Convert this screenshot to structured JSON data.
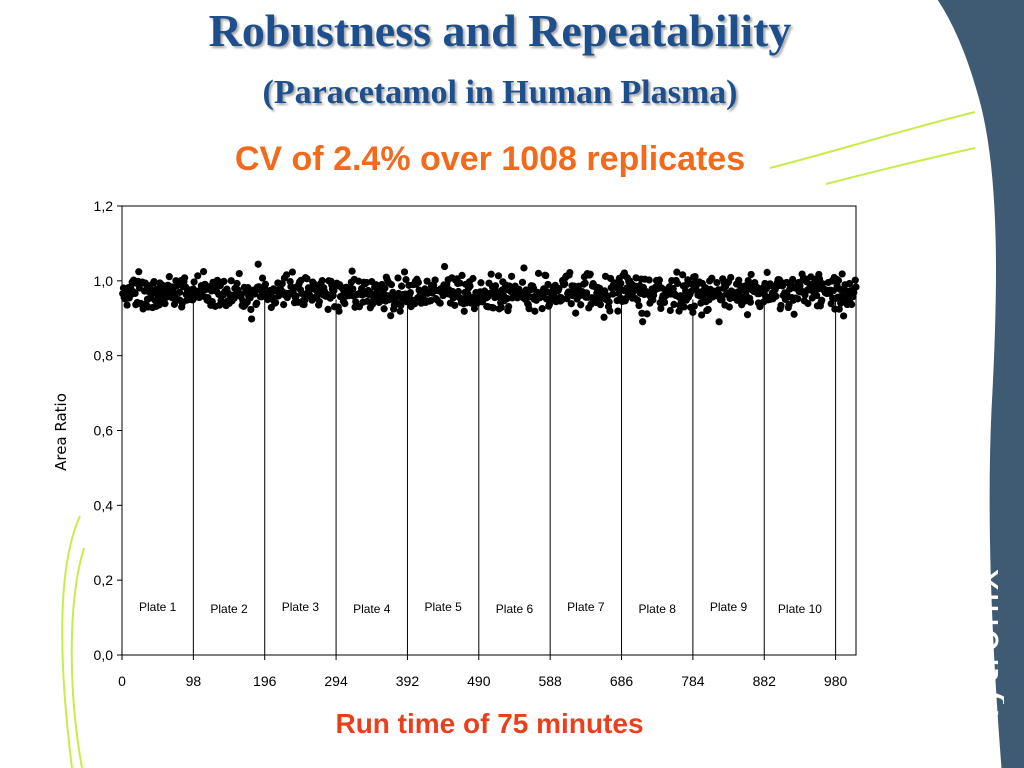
{
  "slide": {
    "title": "Robustness and Repeatability",
    "title_line2": "(Paracetamol in Human Plasma)",
    "subtitle": "CV of 2.4% over 1008 replicates",
    "x_caption": "Run time of 75 minutes",
    "logo_text": "Phytronix"
  },
  "colors": {
    "title": "#1d4f8c",
    "subtitle": "#f26a1b",
    "caption": "#e8401c",
    "side_panel": "#3f5b73",
    "accent_line": "#c8ec4a",
    "points": "#000000"
  },
  "chart_data": {
    "type": "scatter",
    "title": "",
    "xlabel": "",
    "ylabel": "Area Ratio",
    "xlim": [
      0,
      1008
    ],
    "ylim": [
      0.0,
      1.2
    ],
    "x_ticks": [
      "0",
      "98",
      "196",
      "294",
      "392",
      "490",
      "588",
      "686",
      "784",
      "882",
      "980"
    ],
    "y_ticks": [
      "0,0",
      "0,2",
      "0,4",
      "0,6",
      "0,8",
      "1,0",
      "1,2"
    ],
    "plate_boundaries": [
      98,
      196,
      294,
      392,
      490,
      588,
      686,
      784,
      882,
      980
    ],
    "plates": [
      "Plate 1",
      "Plate 2",
      "Plate 3",
      "Plate 4",
      "Plate 5",
      "Plate 6",
      "Plate 7",
      "Plate 8",
      "Plate 9",
      "Plate 10"
    ],
    "grid": false,
    "legend": "none",
    "series": [
      {
        "x_range": [
          1,
          1008
        ],
        "points_count": 1008,
        "mean": 0.97,
        "cv_percent": 2.4,
        "min": 0.86,
        "max": 1.05
      }
    ]
  }
}
